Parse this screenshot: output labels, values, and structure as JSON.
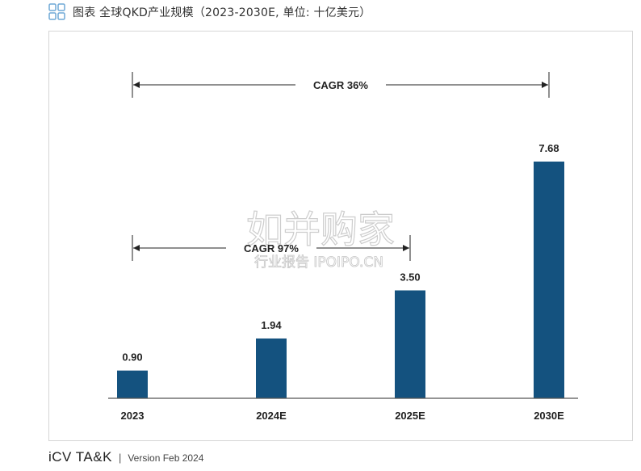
{
  "header": {
    "icon": "grid-icon",
    "title": "图表 全球QKD产业规模（2023-2030E, 单位: 十亿美元）"
  },
  "chart_data": {
    "type": "bar",
    "categories": [
      "2023",
      "2024E",
      "2025E",
      "2030E"
    ],
    "values": [
      0.9,
      1.94,
      3.5,
      7.68
    ],
    "value_labels": [
      "0.90",
      "1.94",
      "3.50",
      "7.68"
    ],
    "bar_color": "#14527f",
    "ylim": [
      0,
      8.5
    ],
    "annotations": [
      {
        "label": "CAGR 36%",
        "from": "2023",
        "to": "2030E"
      },
      {
        "label": "CAGR 97%",
        "from": "2023",
        "to": "2025E"
      }
    ],
    "watermark": {
      "line1": "如并购家",
      "line2": "行业报告 IPOIPO.CN"
    }
  },
  "footer": {
    "brand": "iCV TA&K",
    "separator": "|",
    "version": "Version Feb 2024"
  }
}
